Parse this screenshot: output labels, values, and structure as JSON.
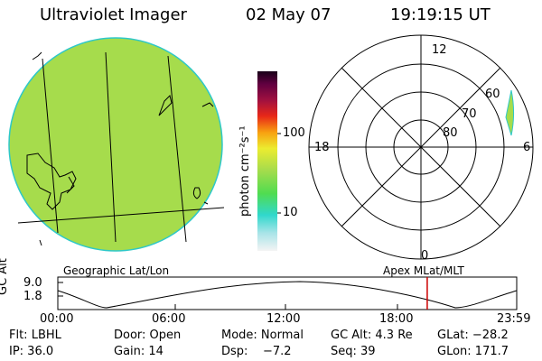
{
  "header": {
    "title": "Ultraviolet Imager",
    "date": "02 May 07",
    "time": "19:19:15 UT"
  },
  "colorbar": {
    "label": "photon cm⁻²s⁻¹",
    "ticks": [
      "100",
      "10"
    ]
  },
  "polar": {
    "lat_labels": [
      "60",
      "70",
      "80"
    ],
    "mlt_labels": [
      "12",
      "18",
      "6",
      "0"
    ]
  },
  "captions": {
    "left": "Geographic Lat/Lon",
    "right": "Apex MLat/MLT"
  },
  "orbit": {
    "ylabel": "GC Alt",
    "yticks": [
      "9.0",
      "1.8"
    ],
    "xticks": [
      "00:00",
      "06:00",
      "12:00",
      "18:00",
      "23:59"
    ],
    "marker_color": "#cc0000",
    "marker_time_hours": 19.32
  },
  "info": {
    "row1": [
      "Flt: LBHL",
      "Door: Open",
      "Mode: Normal",
      "GC Alt: 4.3 Re",
      "GLat: −28.2"
    ],
    "row2": [
      "IP: 36.0",
      "Gain: 14",
      "Dsp:    −7.2",
      "Seq: 39",
      "GLon: 171.7"
    ]
  },
  "colors": {
    "image_fill": "#a6dc4c",
    "accent": "#cc0000"
  }
}
